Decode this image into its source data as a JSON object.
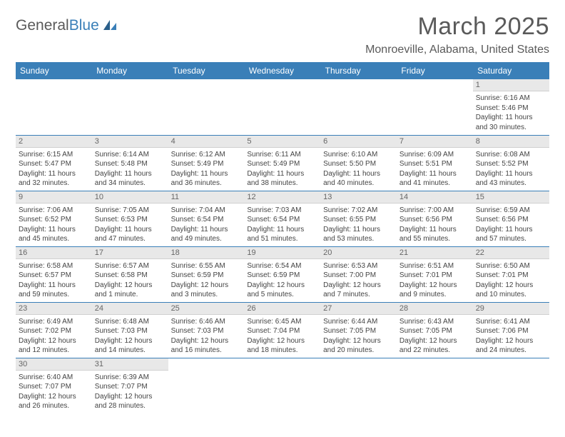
{
  "logo": {
    "textA": "General",
    "textB": "Blue"
  },
  "title": "March 2025",
  "location": "Monroeville, Alabama, United States",
  "colors": {
    "accent": "#3a7fb8",
    "header_bg": "#3a7fb8",
    "daynum_bg": "#e8e8e8"
  },
  "weekdays": [
    "Sunday",
    "Monday",
    "Tuesday",
    "Wednesday",
    "Thursday",
    "Friday",
    "Saturday"
  ],
  "weeks": [
    [
      null,
      null,
      null,
      null,
      null,
      null,
      {
        "num": "1",
        "sunrise": "Sunrise: 6:16 AM",
        "sunset": "Sunset: 5:46 PM",
        "daylight": "Daylight: 11 hours and 30 minutes."
      }
    ],
    [
      {
        "num": "2",
        "sunrise": "Sunrise: 6:15 AM",
        "sunset": "Sunset: 5:47 PM",
        "daylight": "Daylight: 11 hours and 32 minutes."
      },
      {
        "num": "3",
        "sunrise": "Sunrise: 6:14 AM",
        "sunset": "Sunset: 5:48 PM",
        "daylight": "Daylight: 11 hours and 34 minutes."
      },
      {
        "num": "4",
        "sunrise": "Sunrise: 6:12 AM",
        "sunset": "Sunset: 5:49 PM",
        "daylight": "Daylight: 11 hours and 36 minutes."
      },
      {
        "num": "5",
        "sunrise": "Sunrise: 6:11 AM",
        "sunset": "Sunset: 5:49 PM",
        "daylight": "Daylight: 11 hours and 38 minutes."
      },
      {
        "num": "6",
        "sunrise": "Sunrise: 6:10 AM",
        "sunset": "Sunset: 5:50 PM",
        "daylight": "Daylight: 11 hours and 40 minutes."
      },
      {
        "num": "7",
        "sunrise": "Sunrise: 6:09 AM",
        "sunset": "Sunset: 5:51 PM",
        "daylight": "Daylight: 11 hours and 41 minutes."
      },
      {
        "num": "8",
        "sunrise": "Sunrise: 6:08 AM",
        "sunset": "Sunset: 5:52 PM",
        "daylight": "Daylight: 11 hours and 43 minutes."
      }
    ],
    [
      {
        "num": "9",
        "sunrise": "Sunrise: 7:06 AM",
        "sunset": "Sunset: 6:52 PM",
        "daylight": "Daylight: 11 hours and 45 minutes."
      },
      {
        "num": "10",
        "sunrise": "Sunrise: 7:05 AM",
        "sunset": "Sunset: 6:53 PM",
        "daylight": "Daylight: 11 hours and 47 minutes."
      },
      {
        "num": "11",
        "sunrise": "Sunrise: 7:04 AM",
        "sunset": "Sunset: 6:54 PM",
        "daylight": "Daylight: 11 hours and 49 minutes."
      },
      {
        "num": "12",
        "sunrise": "Sunrise: 7:03 AM",
        "sunset": "Sunset: 6:54 PM",
        "daylight": "Daylight: 11 hours and 51 minutes."
      },
      {
        "num": "13",
        "sunrise": "Sunrise: 7:02 AM",
        "sunset": "Sunset: 6:55 PM",
        "daylight": "Daylight: 11 hours and 53 minutes."
      },
      {
        "num": "14",
        "sunrise": "Sunrise: 7:00 AM",
        "sunset": "Sunset: 6:56 PM",
        "daylight": "Daylight: 11 hours and 55 minutes."
      },
      {
        "num": "15",
        "sunrise": "Sunrise: 6:59 AM",
        "sunset": "Sunset: 6:56 PM",
        "daylight": "Daylight: 11 hours and 57 minutes."
      }
    ],
    [
      {
        "num": "16",
        "sunrise": "Sunrise: 6:58 AM",
        "sunset": "Sunset: 6:57 PM",
        "daylight": "Daylight: 11 hours and 59 minutes."
      },
      {
        "num": "17",
        "sunrise": "Sunrise: 6:57 AM",
        "sunset": "Sunset: 6:58 PM",
        "daylight": "Daylight: 12 hours and 1 minute."
      },
      {
        "num": "18",
        "sunrise": "Sunrise: 6:55 AM",
        "sunset": "Sunset: 6:59 PM",
        "daylight": "Daylight: 12 hours and 3 minutes."
      },
      {
        "num": "19",
        "sunrise": "Sunrise: 6:54 AM",
        "sunset": "Sunset: 6:59 PM",
        "daylight": "Daylight: 12 hours and 5 minutes."
      },
      {
        "num": "20",
        "sunrise": "Sunrise: 6:53 AM",
        "sunset": "Sunset: 7:00 PM",
        "daylight": "Daylight: 12 hours and 7 minutes."
      },
      {
        "num": "21",
        "sunrise": "Sunrise: 6:51 AM",
        "sunset": "Sunset: 7:01 PM",
        "daylight": "Daylight: 12 hours and 9 minutes."
      },
      {
        "num": "22",
        "sunrise": "Sunrise: 6:50 AM",
        "sunset": "Sunset: 7:01 PM",
        "daylight": "Daylight: 12 hours and 10 minutes."
      }
    ],
    [
      {
        "num": "23",
        "sunrise": "Sunrise: 6:49 AM",
        "sunset": "Sunset: 7:02 PM",
        "daylight": "Daylight: 12 hours and 12 minutes."
      },
      {
        "num": "24",
        "sunrise": "Sunrise: 6:48 AM",
        "sunset": "Sunset: 7:03 PM",
        "daylight": "Daylight: 12 hours and 14 minutes."
      },
      {
        "num": "25",
        "sunrise": "Sunrise: 6:46 AM",
        "sunset": "Sunset: 7:03 PM",
        "daylight": "Daylight: 12 hours and 16 minutes."
      },
      {
        "num": "26",
        "sunrise": "Sunrise: 6:45 AM",
        "sunset": "Sunset: 7:04 PM",
        "daylight": "Daylight: 12 hours and 18 minutes."
      },
      {
        "num": "27",
        "sunrise": "Sunrise: 6:44 AM",
        "sunset": "Sunset: 7:05 PM",
        "daylight": "Daylight: 12 hours and 20 minutes."
      },
      {
        "num": "28",
        "sunrise": "Sunrise: 6:43 AM",
        "sunset": "Sunset: 7:05 PM",
        "daylight": "Daylight: 12 hours and 22 minutes."
      },
      {
        "num": "29",
        "sunrise": "Sunrise: 6:41 AM",
        "sunset": "Sunset: 7:06 PM",
        "daylight": "Daylight: 12 hours and 24 minutes."
      }
    ],
    [
      {
        "num": "30",
        "sunrise": "Sunrise: 6:40 AM",
        "sunset": "Sunset: 7:07 PM",
        "daylight": "Daylight: 12 hours and 26 minutes."
      },
      {
        "num": "31",
        "sunrise": "Sunrise: 6:39 AM",
        "sunset": "Sunset: 7:07 PM",
        "daylight": "Daylight: 12 hours and 28 minutes."
      },
      null,
      null,
      null,
      null,
      null
    ]
  ]
}
